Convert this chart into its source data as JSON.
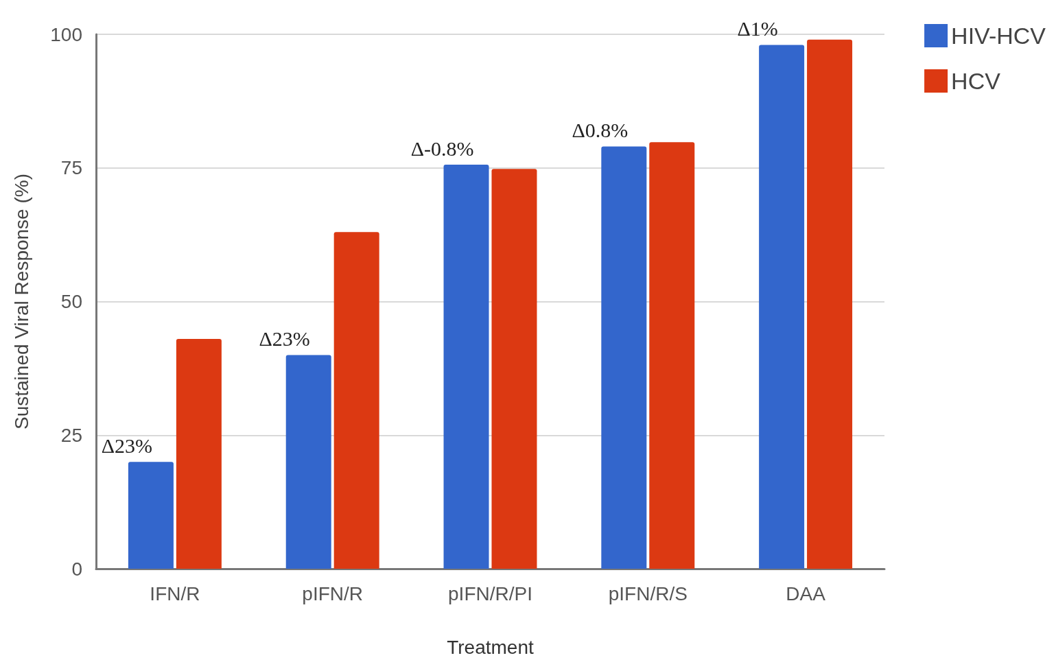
{
  "chart_data": {
    "type": "bar",
    "xlabel": "Treatment",
    "ylabel": "Sustained Viral Response (%)",
    "categories": [
      "IFN/R",
      "pIFN/R",
      "pIFN/R/PI",
      "pIFN/R/S",
      "DAA"
    ],
    "series": [
      {
        "name": "HIV-HCV",
        "color": "#3366cc",
        "values": [
          20,
          40,
          75.6,
          79,
          98
        ]
      },
      {
        "name": "HCV",
        "color": "#dc3912",
        "values": [
          43,
          63,
          74.8,
          79.8,
          99
        ]
      }
    ],
    "ylim": [
      0,
      100
    ],
    "yticks": [
      0,
      25,
      50,
      75,
      100
    ],
    "grid": "y",
    "legend": "top right",
    "annotations": [
      {
        "text": "Δ23%",
        "x": "IFN/R",
        "y": 20
      },
      {
        "text": "Δ23%",
        "x": "pIFN/R",
        "y": 40
      },
      {
        "text": "Δ-0.8%",
        "x": "pIFN/R/PI",
        "y": 75.6
      },
      {
        "text": "Δ0.8%",
        "x": "pIFN/R/S",
        "y": 79
      },
      {
        "text": "Δ1%",
        "x": "DAA",
        "y": 98
      }
    ]
  }
}
